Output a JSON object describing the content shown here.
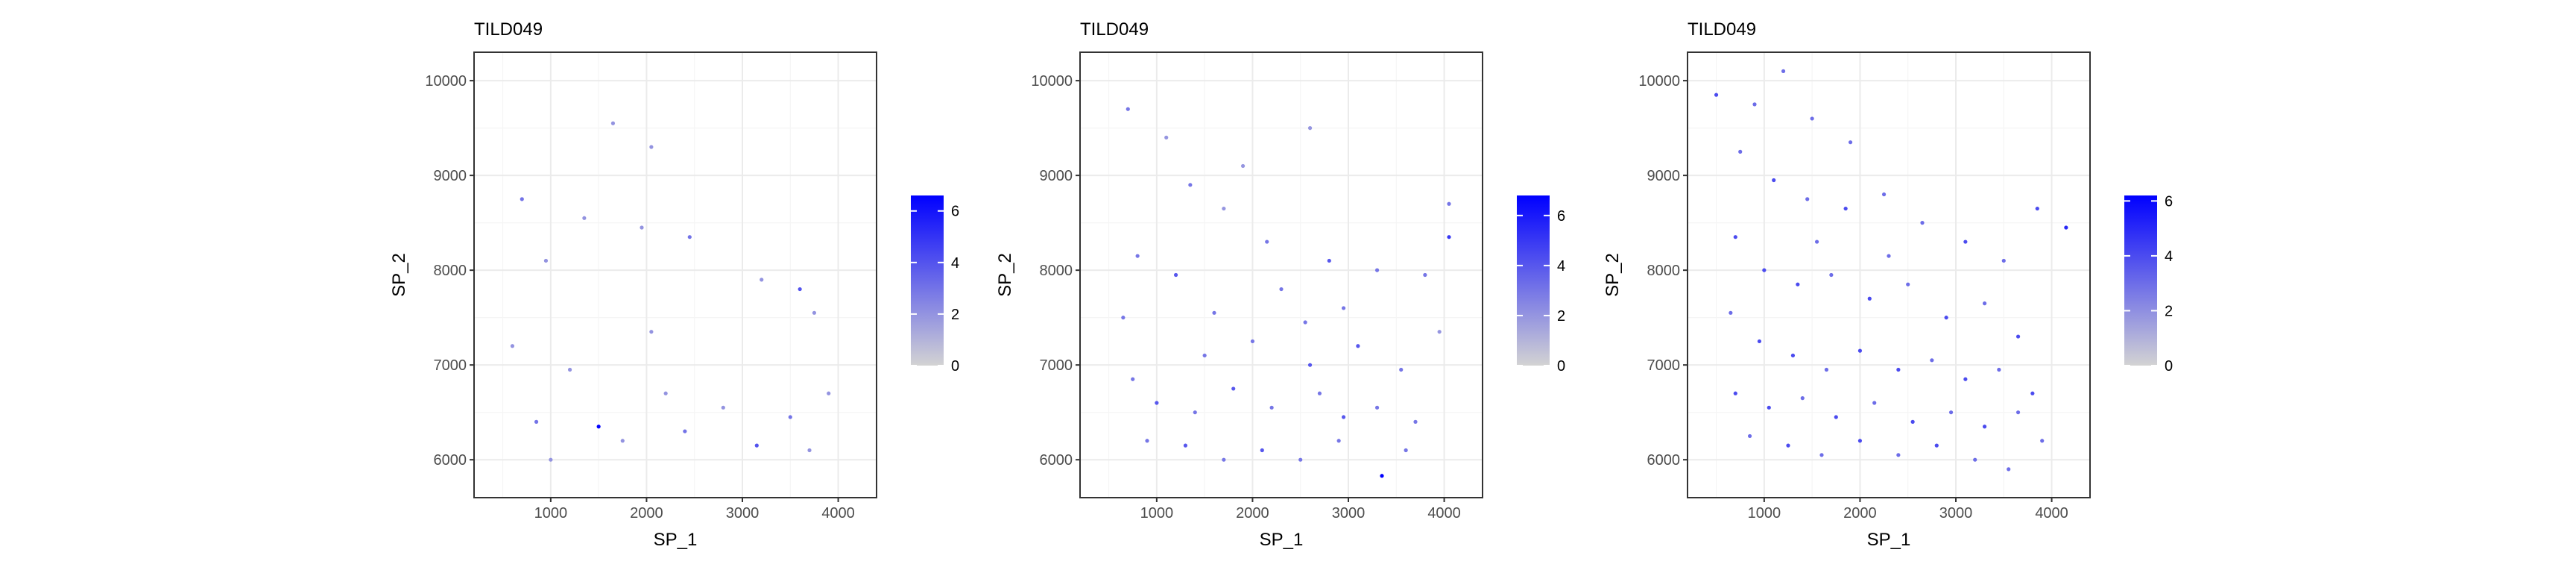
{
  "colors": {
    "low": "#d3d3d3",
    "high": "#0000ff",
    "panel_border": "#333333",
    "grid_major": "#ebebeb",
    "grid_minor": "#f5f5f5"
  },
  "chart_data": [
    {
      "type": "scatter",
      "title": "TILD049",
      "xlabel": "SP_1",
      "ylabel": "SP_2",
      "xlim": [
        200,
        4400
      ],
      "ylim": [
        5600,
        10300
      ],
      "xticks": [
        1000,
        2000,
        3000,
        4000
      ],
      "yticks": [
        6000,
        7000,
        8000,
        9000,
        10000
      ],
      "legend": {
        "placement": "right",
        "ticks": [
          0,
          2,
          4,
          6
        ],
        "range": [
          0,
          6.6
        ]
      },
      "highlights": [
        {
          "x": 700,
          "y": 8750,
          "v": 3
        },
        {
          "x": 1350,
          "y": 8550,
          "v": 2
        },
        {
          "x": 1950,
          "y": 8450,
          "v": 2
        },
        {
          "x": 2450,
          "y": 8350,
          "v": 3
        },
        {
          "x": 3600,
          "y": 7800,
          "v": 4
        },
        {
          "x": 3750,
          "y": 7550,
          "v": 2
        },
        {
          "x": 1200,
          "y": 6950,
          "v": 2
        },
        {
          "x": 2200,
          "y": 6700,
          "v": 2
        },
        {
          "x": 850,
          "y": 6400,
          "v": 3
        },
        {
          "x": 1500,
          "y": 6350,
          "v": 6.5
        },
        {
          "x": 2400,
          "y": 6300,
          "v": 3
        },
        {
          "x": 3150,
          "y": 6150,
          "v": 4
        },
        {
          "x": 3700,
          "y": 6100,
          "v": 2
        },
        {
          "x": 1750,
          "y": 6200,
          "v": 2
        },
        {
          "x": 3500,
          "y": 6450,
          "v": 3
        },
        {
          "x": 2800,
          "y": 6550,
          "v": 2
        },
        {
          "x": 2050,
          "y": 7350,
          "v": 2
        },
        {
          "x": 3200,
          "y": 7900,
          "v": 2
        },
        {
          "x": 950,
          "y": 8100,
          "v": 2
        },
        {
          "x": 1650,
          "y": 9550,
          "v": 2
        },
        {
          "x": 2050,
          "y": 9300,
          "v": 2
        },
        {
          "x": 3900,
          "y": 6700,
          "v": 2
        },
        {
          "x": 600,
          "y": 7200,
          "v": 2
        },
        {
          "x": 1000,
          "y": 6000,
          "v": 2
        }
      ]
    },
    {
      "type": "scatter",
      "title": "TILD049",
      "xlabel": "SP_1",
      "ylabel": "SP_2",
      "xlim": [
        200,
        4400
      ],
      "ylim": [
        5600,
        10300
      ],
      "xticks": [
        1000,
        2000,
        3000,
        4000
      ],
      "yticks": [
        6000,
        7000,
        8000,
        9000,
        10000
      ],
      "legend": {
        "placement": "right",
        "ticks": [
          0,
          2,
          4,
          6
        ],
        "range": [
          0,
          6.8
        ]
      },
      "highlights": [
        {
          "x": 700,
          "y": 9700,
          "v": 3
        },
        {
          "x": 1100,
          "y": 9400,
          "v": 2
        },
        {
          "x": 1350,
          "y": 8900,
          "v": 3
        },
        {
          "x": 1700,
          "y": 8650,
          "v": 2
        },
        {
          "x": 2150,
          "y": 8300,
          "v": 3
        },
        {
          "x": 2800,
          "y": 8100,
          "v": 4
        },
        {
          "x": 3300,
          "y": 8000,
          "v": 3
        },
        {
          "x": 4050,
          "y": 8350,
          "v": 5
        },
        {
          "x": 3800,
          "y": 7950,
          "v": 3
        },
        {
          "x": 800,
          "y": 8150,
          "v": 3
        },
        {
          "x": 1200,
          "y": 7950,
          "v": 4
        },
        {
          "x": 1600,
          "y": 7550,
          "v": 3
        },
        {
          "x": 2000,
          "y": 7250,
          "v": 3
        },
        {
          "x": 2550,
          "y": 7450,
          "v": 3
        },
        {
          "x": 3100,
          "y": 7200,
          "v": 4
        },
        {
          "x": 3550,
          "y": 6950,
          "v": 3
        },
        {
          "x": 750,
          "y": 6850,
          "v": 3
        },
        {
          "x": 1000,
          "y": 6600,
          "v": 4
        },
        {
          "x": 1400,
          "y": 6500,
          "v": 3
        },
        {
          "x": 1800,
          "y": 6750,
          "v": 4
        },
        {
          "x": 2200,
          "y": 6550,
          "v": 3
        },
        {
          "x": 2700,
          "y": 6700,
          "v": 3
        },
        {
          "x": 2950,
          "y": 6450,
          "v": 4
        },
        {
          "x": 3300,
          "y": 6550,
          "v": 3
        },
        {
          "x": 3700,
          "y": 6400,
          "v": 3
        },
        {
          "x": 900,
          "y": 6200,
          "v": 3
        },
        {
          "x": 1300,
          "y": 6150,
          "v": 4
        },
        {
          "x": 1700,
          "y": 6000,
          "v": 3
        },
        {
          "x": 2100,
          "y": 6100,
          "v": 4
        },
        {
          "x": 2500,
          "y": 6000,
          "v": 3
        },
        {
          "x": 2900,
          "y": 6200,
          "v": 3
        },
        {
          "x": 3350,
          "y": 5830,
          "v": 6.8
        },
        {
          "x": 3600,
          "y": 6100,
          "v": 3
        },
        {
          "x": 650,
          "y": 7500,
          "v": 3
        },
        {
          "x": 2300,
          "y": 7800,
          "v": 3
        },
        {
          "x": 2950,
          "y": 7600,
          "v": 3
        },
        {
          "x": 1500,
          "y": 7100,
          "v": 3
        },
        {
          "x": 2600,
          "y": 7000,
          "v": 4
        },
        {
          "x": 3950,
          "y": 7350,
          "v": 2
        },
        {
          "x": 4050,
          "y": 8700,
          "v": 3
        },
        {
          "x": 1900,
          "y": 9100,
          "v": 2
        },
        {
          "x": 2600,
          "y": 9500,
          "v": 2
        }
      ]
    },
    {
      "type": "scatter",
      "title": "TILD049",
      "xlabel": "SP_1",
      "ylabel": "SP_2",
      "xlim": [
        200,
        4400
      ],
      "ylim": [
        5600,
        10300
      ],
      "xticks": [
        1000,
        2000,
        3000,
        4000
      ],
      "yticks": [
        6000,
        7000,
        8000,
        9000,
        10000
      ],
      "legend": {
        "placement": "right",
        "ticks": [
          0,
          2,
          4,
          6
        ],
        "range": [
          0,
          6.2
        ]
      },
      "highlights": [
        {
          "x": 500,
          "y": 9850,
          "v": 4
        },
        {
          "x": 900,
          "y": 9750,
          "v": 3
        },
        {
          "x": 1200,
          "y": 10100,
          "v": 3
        },
        {
          "x": 1500,
          "y": 9600,
          "v": 3
        },
        {
          "x": 1900,
          "y": 9350,
          "v": 3
        },
        {
          "x": 750,
          "y": 9250,
          "v": 3
        },
        {
          "x": 1100,
          "y": 8950,
          "v": 4
        },
        {
          "x": 1450,
          "y": 8750,
          "v": 3
        },
        {
          "x": 1850,
          "y": 8650,
          "v": 4
        },
        {
          "x": 2250,
          "y": 8800,
          "v": 3
        },
        {
          "x": 2650,
          "y": 8500,
          "v": 3
        },
        {
          "x": 3100,
          "y": 8300,
          "v": 4
        },
        {
          "x": 3500,
          "y": 8100,
          "v": 3
        },
        {
          "x": 3850,
          "y": 8650,
          "v": 4
        },
        {
          "x": 4150,
          "y": 8450,
          "v": 5
        },
        {
          "x": 700,
          "y": 8350,
          "v": 4
        },
        {
          "x": 1000,
          "y": 8000,
          "v": 4
        },
        {
          "x": 1350,
          "y": 7850,
          "v": 4
        },
        {
          "x": 1700,
          "y": 7950,
          "v": 3
        },
        {
          "x": 2100,
          "y": 7700,
          "v": 4
        },
        {
          "x": 2500,
          "y": 7850,
          "v": 3
        },
        {
          "x": 2900,
          "y": 7500,
          "v": 4
        },
        {
          "x": 3300,
          "y": 7650,
          "v": 3
        },
        {
          "x": 3650,
          "y": 7300,
          "v": 4
        },
        {
          "x": 650,
          "y": 7550,
          "v": 3
        },
        {
          "x": 950,
          "y": 7250,
          "v": 4
        },
        {
          "x": 1300,
          "y": 7100,
          "v": 4
        },
        {
          "x": 1650,
          "y": 6950,
          "v": 3
        },
        {
          "x": 2000,
          "y": 7150,
          "v": 4
        },
        {
          "x": 2400,
          "y": 6950,
          "v": 4
        },
        {
          "x": 2750,
          "y": 7050,
          "v": 3
        },
        {
          "x": 3100,
          "y": 6850,
          "v": 4
        },
        {
          "x": 3450,
          "y": 6950,
          "v": 3
        },
        {
          "x": 3800,
          "y": 6700,
          "v": 4
        },
        {
          "x": 700,
          "y": 6700,
          "v": 4
        },
        {
          "x": 1050,
          "y": 6550,
          "v": 4
        },
        {
          "x": 1400,
          "y": 6650,
          "v": 3
        },
        {
          "x": 1750,
          "y": 6450,
          "v": 4
        },
        {
          "x": 2150,
          "y": 6600,
          "v": 3
        },
        {
          "x": 2550,
          "y": 6400,
          "v": 4
        },
        {
          "x": 2950,
          "y": 6500,
          "v": 3
        },
        {
          "x": 3300,
          "y": 6350,
          "v": 4
        },
        {
          "x": 3650,
          "y": 6500,
          "v": 3
        },
        {
          "x": 850,
          "y": 6250,
          "v": 3
        },
        {
          "x": 1250,
          "y": 6150,
          "v": 4
        },
        {
          "x": 1600,
          "y": 6050,
          "v": 3
        },
        {
          "x": 2000,
          "y": 6200,
          "v": 4
        },
        {
          "x": 2400,
          "y": 6050,
          "v": 3
        },
        {
          "x": 2800,
          "y": 6150,
          "v": 4
        },
        {
          "x": 3200,
          "y": 6000,
          "v": 3
        },
        {
          "x": 3550,
          "y": 5900,
          "v": 3
        },
        {
          "x": 3900,
          "y": 6200,
          "v": 3
        },
        {
          "x": 1550,
          "y": 8300,
          "v": 3
        },
        {
          "x": 2300,
          "y": 8150,
          "v": 3
        }
      ]
    }
  ]
}
